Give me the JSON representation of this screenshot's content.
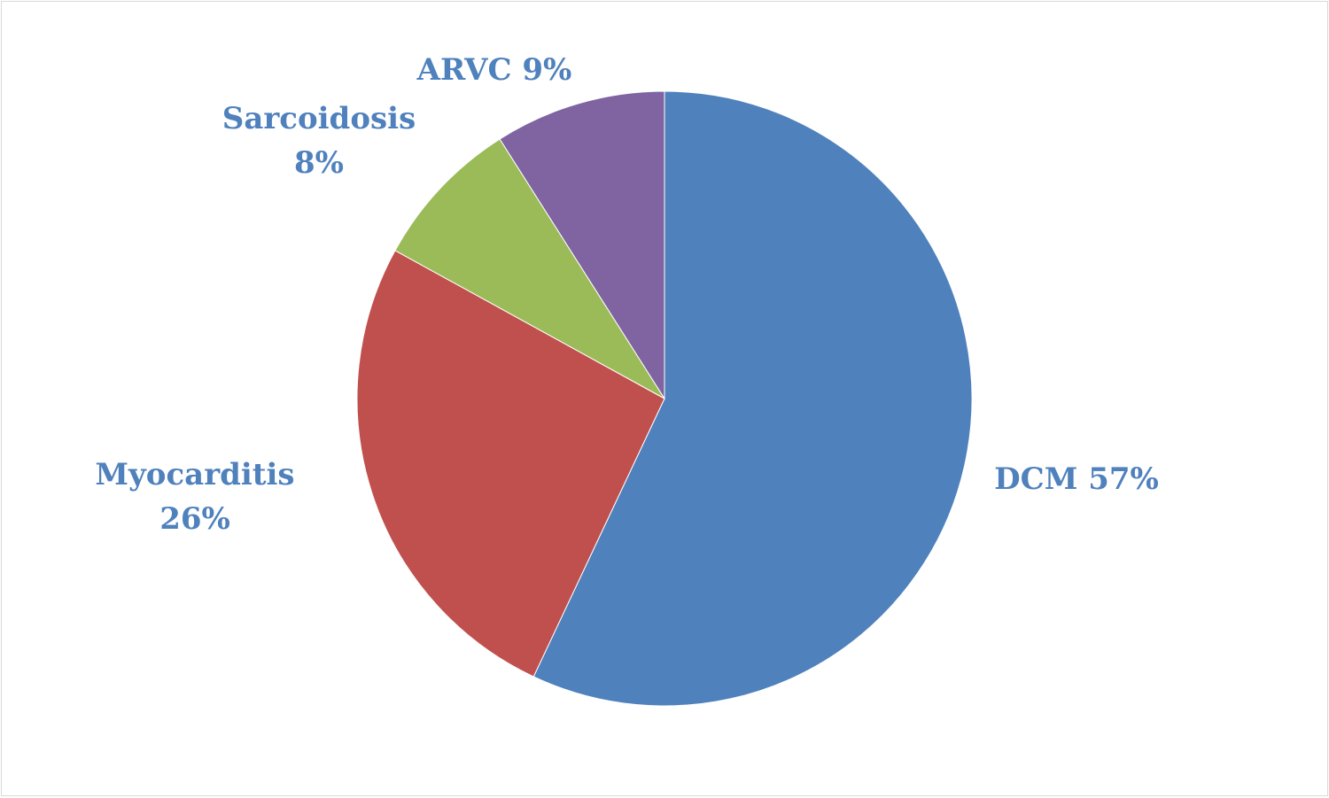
{
  "chart_data": {
    "type": "pie",
    "title": "",
    "slices": [
      {
        "name": "DCM",
        "value": 57,
        "color": "#4f81bd",
        "label_lines": [
          "DCM 57%"
        ]
      },
      {
        "name": "Myocarditis",
        "value": 26,
        "color": "#c0504d",
        "label_lines": [
          "Myocarditis",
          "26%"
        ]
      },
      {
        "name": "Sarcoidosis",
        "value": 8,
        "color": "#9bbb59",
        "label_lines": [
          "Sarcoidosis",
          "8%"
        ]
      },
      {
        "name": "ARVC",
        "value": 9,
        "color": "#8064a2",
        "label_lines": [
          "ARVC 9%"
        ]
      }
    ],
    "legend": "none",
    "label_color": "#4f81bd"
  }
}
